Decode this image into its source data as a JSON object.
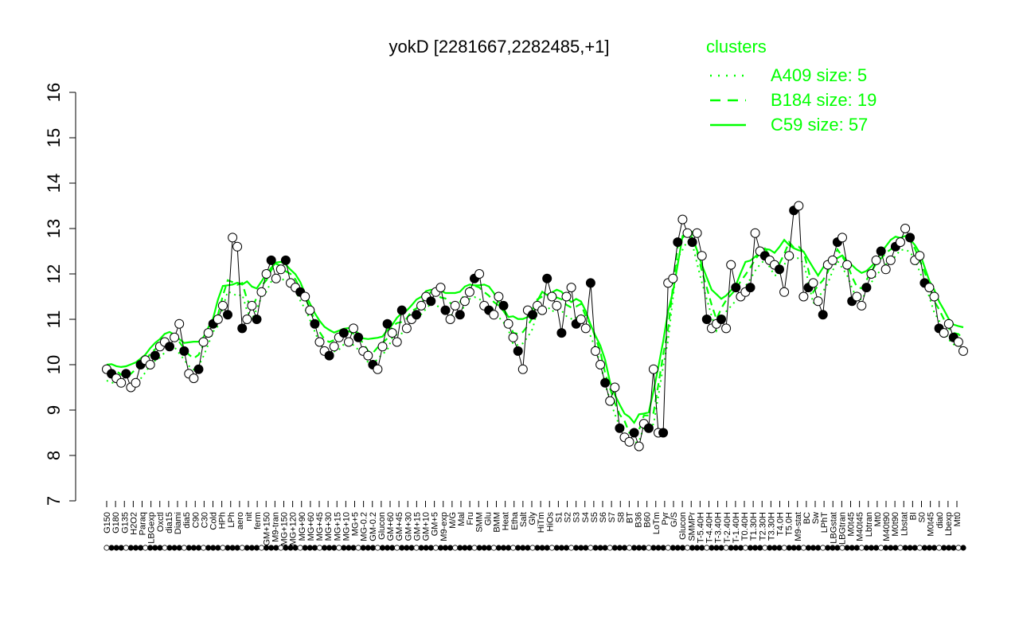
{
  "chart_data": {
    "type": "line",
    "title": "yokD [2281667,2282485,+1]",
    "xlabel": "",
    "ylabel": "",
    "ylim": [
      7,
      16
    ],
    "yticks": [
      7,
      8,
      9,
      10,
      11,
      12,
      13,
      14,
      15,
      16
    ],
    "grid": false,
    "legend_position": "top-right",
    "legend": {
      "title": "clusters",
      "color": "#00ff00",
      "entries": [
        {
          "label": "A409 size: 5",
          "style": "dotted"
        },
        {
          "label": "B184 size: 19",
          "style": "dashed"
        },
        {
          "label": "C59 size: 57",
          "style": "solid"
        }
      ]
    },
    "x_tick_labels": [
      "G150",
      "G180",
      "G135",
      "H2O2",
      "Paraq",
      "LBGexp",
      "Oxctl",
      "dia15",
      "Diami",
      "dia5",
      "C90",
      "C30",
      "Cold",
      "HPh",
      "LPh",
      "aero",
      "nit",
      "ferm",
      "GM+150",
      "M9-tran",
      "MG+150",
      "MG+120",
      "MG+90",
      "MG+60",
      "MG+45",
      "MG+30",
      "MG+15",
      "MG+10",
      "MG+5",
      "MG-0.2",
      "GM-0.2",
      "Glucon",
      "GM+60",
      "GM+45",
      "GM+30",
      "GM+15",
      "GM+10",
      "GM+5",
      "M9-exp",
      "M/G",
      "Mal",
      "Fru",
      "SMM",
      "Glu",
      "BMM",
      "Heat",
      "Etha",
      "Salt",
      "Gly",
      "HiTm",
      "HiOs",
      "S1",
      "S2",
      "S3",
      "S4",
      "S5",
      "S6",
      "S7",
      "S8",
      "BT",
      "B36",
      "B60",
      "LoTm",
      "Pyr",
      "G/S",
      "Glucon",
      "SMMPr",
      "T-5.40H",
      "T-4.40H",
      "T-3.40H",
      "T-2.40H",
      "T-1.40H",
      "T0.40H",
      "T1.30H",
      "T2.30H",
      "T3.30H",
      "T4.0H",
      "T5.0H",
      "M9-stat",
      "BC",
      "Sw",
      "LPhT",
      "LBGstat",
      "LBGtran",
      "M0t45",
      "M40t45",
      "Lbtran",
      "Mt0",
      "M40t90",
      "M0t90",
      "Lbstat",
      "BI",
      "S0",
      "M0t45",
      "dia0",
      "Lbexp",
      "Mt0"
    ],
    "series": [
      {
        "values": [
          9.9,
          9.8,
          9.7,
          9.6,
          9.8,
          9.5,
          9.6,
          10.0,
          10.1,
          10.0,
          10.2,
          10.4,
          10.5,
          10.4,
          10.6,
          10.9,
          10.3,
          9.8,
          9.7,
          9.9,
          10.5,
          10.7,
          10.9,
          11.0,
          11.3,
          11.1,
          12.8,
          12.6,
          10.8,
          11.0,
          11.3,
          11.0,
          11.6,
          12.0,
          12.3,
          11.9,
          12.1,
          12.3,
          11.8,
          11.7,
          11.6,
          11.5,
          11.2,
          10.9,
          10.5,
          10.3,
          10.2,
          10.4,
          10.6,
          10.7,
          10.5,
          10.8,
          10.6,
          10.3,
          10.2,
          10.0,
          9.9,
          10.4,
          10.9,
          10.7,
          10.5,
          11.2,
          10.8,
          11.0,
          11.1,
          11.3,
          11.5,
          11.4,
          11.6,
          11.7,
          11.2,
          11.0,
          11.3,
          11.1,
          11.4,
          11.6,
          11.9,
          12.0,
          11.3,
          11.2,
          11.1,
          11.5,
          11.3,
          10.9,
          10.6,
          10.3,
          9.9,
          11.2,
          11.1,
          11.3,
          11.2,
          11.9,
          11.5,
          11.3,
          10.7,
          11.5,
          11.7,
          10.9,
          11.0,
          10.8,
          11.8,
          10.3,
          10.0,
          9.6,
          9.2,
          9.5,
          8.6,
          8.4,
          8.3,
          8.5,
          8.2,
          8.7,
          8.6,
          9.9,
          8.5,
          8.5,
          11.8,
          11.9,
          12.7,
          13.2,
          12.9,
          12.7,
          12.9,
          12.4,
          11.0,
          10.8,
          10.9,
          11.0,
          10.8,
          12.2,
          11.7,
          11.5,
          11.6,
          11.7,
          12.9,
          12.5,
          12.4,
          12.3,
          12.2,
          12.1,
          11.6,
          12.4,
          13.4,
          13.5,
          11.5,
          11.7,
          11.8,
          11.4,
          11.1,
          12.2,
          12.3,
          12.7,
          12.8,
          12.2,
          11.4,
          11.5,
          11.3,
          11.7,
          12.0,
          12.3,
          12.5,
          12.1,
          12.3,
          12.6,
          12.7,
          13.0,
          12.8,
          12.3,
          12.4,
          11.8,
          11.7,
          11.5,
          10.8,
          10.7,
          10.9,
          10.6,
          10.5,
          10.3
        ]
      }
    ]
  }
}
